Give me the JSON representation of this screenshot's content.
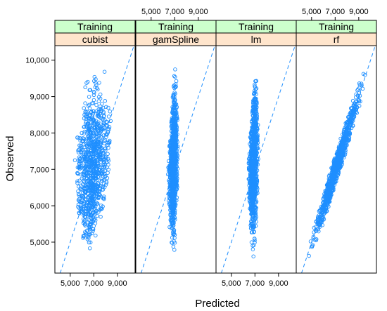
{
  "chart_data": {
    "type": "scatter",
    "title": "",
    "xlabel": "Predicted",
    "ylabel": "Observed",
    "xlim": [
      3700,
      10500
    ],
    "ylim": [
      4150,
      10400
    ],
    "x_ticks": [
      5000,
      7000,
      9000
    ],
    "x_tick_labels": [
      "5,000",
      "7,000",
      "9,000"
    ],
    "y_ticks": [
      5000,
      6000,
      7000,
      8000,
      9000,
      10000
    ],
    "y_tick_labels": [
      "5,000",
      "6,000",
      "7,000",
      "8,000",
      "9,000",
      "10,000"
    ],
    "reference_line": "y = x",
    "grid": false,
    "marker": "open-circle",
    "point_color": "#1f8fff",
    "strip_top_color": "#ccffcc",
    "strip_bottom_color": "#ffe5cc",
    "panels": [
      {
        "group": "Training",
        "model": "cubist",
        "ranges": [
          {
            "observed": 4400,
            "predicted_min": 6400,
            "predicted_max": 6800
          },
          {
            "observed": 5000,
            "predicted_min": 5900,
            "predicted_max": 7100
          },
          {
            "observed": 6000,
            "predicted_min": 5500,
            "predicted_max": 7900
          },
          {
            "observed": 7000,
            "predicted_min": 5200,
            "predicted_max": 8500
          },
          {
            "observed": 8000,
            "predicted_min": 5600,
            "predicted_max": 8700
          },
          {
            "observed": 9000,
            "predicted_min": 6100,
            "predicted_max": 8400
          },
          {
            "observed": 9900,
            "predicted_min": 6500,
            "predicted_max": 8000
          }
        ]
      },
      {
        "group": "Training",
        "model": "gamSpline",
        "ranges": [
          {
            "observed": 4400,
            "predicted_min": 6800,
            "predicted_max": 7000
          },
          {
            "observed": 5000,
            "predicted_min": 6600,
            "predicted_max": 7100
          },
          {
            "observed": 6000,
            "predicted_min": 6500,
            "predicted_max": 7200
          },
          {
            "observed": 7000,
            "predicted_min": 6400,
            "predicted_max": 7300
          },
          {
            "observed": 8000,
            "predicted_min": 6600,
            "predicted_max": 7300
          },
          {
            "observed": 9000,
            "predicted_min": 6800,
            "predicted_max": 7200
          },
          {
            "observed": 9900,
            "predicted_min": 7000,
            "predicted_max": 7100
          }
        ]
      },
      {
        "group": "Training",
        "model": "lm",
        "ranges": [
          {
            "observed": 4400,
            "predicted_min": 6800,
            "predicted_max": 7000
          },
          {
            "observed": 5000,
            "predicted_min": 6600,
            "predicted_max": 7100
          },
          {
            "observed": 6000,
            "predicted_min": 6500,
            "predicted_max": 7200
          },
          {
            "observed": 7000,
            "predicted_min": 6400,
            "predicted_max": 7300
          },
          {
            "observed": 8000,
            "predicted_min": 6600,
            "predicted_max": 7300
          },
          {
            "observed": 9000,
            "predicted_min": 6800,
            "predicted_max": 7200
          },
          {
            "observed": 9900,
            "predicted_min": 7000,
            "predicted_max": 7100
          }
        ]
      },
      {
        "group": "Training",
        "model": "rf",
        "ranges": [
          {
            "observed": 4400,
            "predicted_min": 4400,
            "predicted_max": 4700
          },
          {
            "observed": 5000,
            "predicted_min": 4800,
            "predicted_max": 5500
          },
          {
            "observed": 6000,
            "predicted_min": 5700,
            "predicted_max": 6500
          },
          {
            "observed": 7000,
            "predicted_min": 6600,
            "predicted_max": 7500
          },
          {
            "observed": 8000,
            "predicted_min": 7600,
            "predicted_max": 8400
          },
          {
            "observed": 9000,
            "predicted_min": 8500,
            "predicted_max": 9300
          },
          {
            "observed": 9900,
            "predicted_min": 9400,
            "predicted_max": 9900
          }
        ]
      }
    ]
  }
}
